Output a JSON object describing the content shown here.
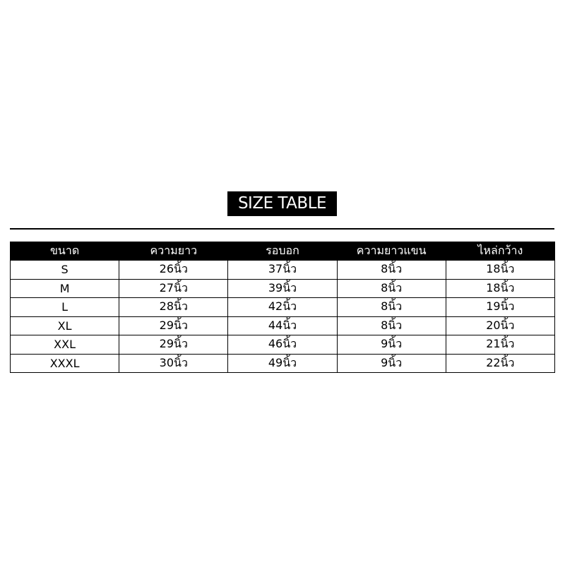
{
  "title": "SIZE TABLE",
  "table": {
    "headers": [
      "ขนาด",
      "ความยาว",
      "รอบอก",
      "ความยาวแขน",
      "ไหล่กว้าง"
    ],
    "rows": [
      [
        "S",
        "26นิ้ว",
        "37นิ้ว",
        "8นิ้ว",
        "18นิ้ว"
      ],
      [
        "M",
        "27นิ้ว",
        "39นิ้ว",
        "8นิ้ว",
        "18นิ้ว"
      ],
      [
        "L",
        "28นิ้ว",
        "42นิ้ว",
        "8นิ้ว",
        "19นิ้ว"
      ],
      [
        "XL",
        "29นิ้ว",
        "44นิ้ว",
        "8นิ้ว",
        "20นิ้ว"
      ],
      [
        "XXL",
        "29นิ้ว",
        "46นิ้ว",
        "9นิ้ว",
        "21นิ้ว"
      ],
      [
        "XXXL",
        "30นิ้ว",
        "49นิ้ว",
        "9นิ้ว",
        "22นิ้ว"
      ]
    ]
  }
}
